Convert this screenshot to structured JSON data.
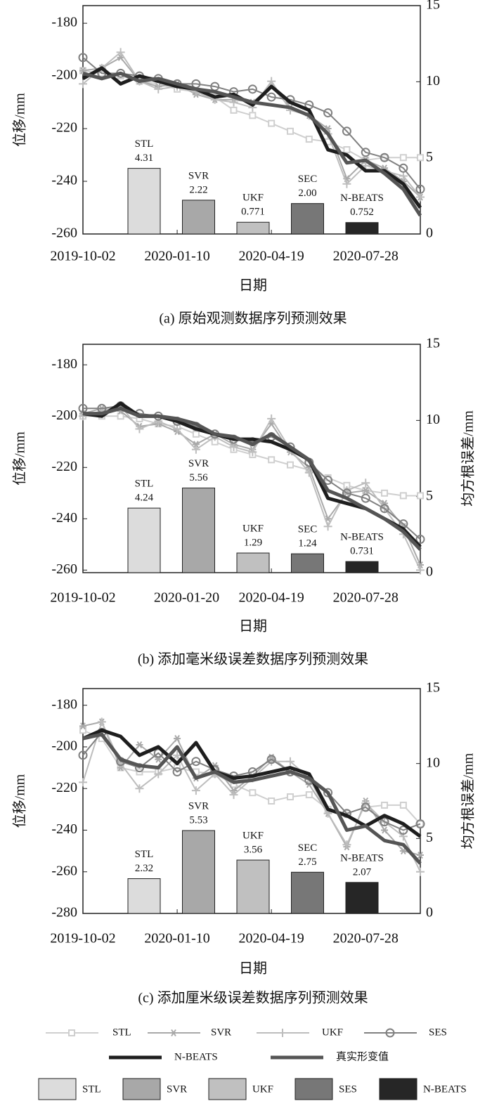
{
  "chart_data": [
    {
      "type": "line",
      "ylabel": "位移/mm",
      "xlabel": "日期",
      "caption": "(a) 原始观测数据序列预测效果",
      "x": [
        "2019-10-02",
        "2019-10-22",
        "2019-11-11",
        "2019-12-01",
        "2019-12-21",
        "2020-01-10",
        "2020-01-30",
        "2020-02-19",
        "2020-03-10",
        "2020-03-30",
        "2020-04-19",
        "2020-05-09",
        "2020-05-29",
        "2020-06-18",
        "2020-07-08",
        "2020-07-28",
        "2020-08-17",
        "2020-09-06",
        "2020-09-24"
      ],
      "xlim": [
        "2019-10-02",
        "2020-09-24"
      ],
      "xticks": [
        "2019-10-02",
        "2020-01-10",
        "2020-04-19",
        "2020-07-28"
      ],
      "ylim": [
        -260,
        -173.3
      ],
      "yticks": [
        -260,
        -240,
        -220,
        -200,
        -180
      ],
      "y2lim": [
        0,
        15
      ],
      "y2ticks": [
        0,
        5,
        10,
        15
      ],
      "series": [
        {
          "name": "STL",
          "color": "#cfcfcf",
          "marker": "square",
          "values": [
            -198,
            -199,
            -200,
            -202,
            -203,
            -205,
            -206,
            -208,
            -213,
            -215,
            -218,
            -221,
            -224,
            -225,
            -228,
            -232,
            -231,
            -231,
            -231
          ]
        },
        {
          "name": "SVR",
          "color": "#a9a9a9",
          "marker": "star",
          "values": [
            -198,
            -197,
            -193,
            -202,
            -204,
            -203,
            -207,
            -209,
            -209,
            -210,
            -204,
            -212,
            -215,
            -220,
            -239,
            -232,
            -235,
            -240,
            -246
          ]
        },
        {
          "name": "UKF",
          "color": "#bdbdbd",
          "marker": "plus",
          "values": [
            -203,
            -197,
            -191,
            -202,
            -205,
            -204,
            -206,
            -209,
            -210,
            -212,
            -202,
            -213,
            -215,
            -222,
            -241,
            -234,
            -236,
            -238,
            -246
          ]
        },
        {
          "name": "SES",
          "color": "#808080",
          "marker": "circle",
          "values": [
            -193,
            -199,
            -199,
            -200,
            -201,
            -203,
            -203,
            -204,
            -206,
            -205,
            -208,
            -209,
            -211,
            -214,
            -221,
            -229,
            -231,
            -235,
            -243
          ]
        },
        {
          "name": "N-BEATS",
          "color": "#1e1e1e",
          "values": [
            -201,
            -197,
            -203,
            -200,
            -202,
            -204,
            -205,
            -208,
            -207,
            -211,
            -204,
            -210,
            -213,
            -228,
            -230,
            -236,
            -236,
            -241,
            -250
          ]
        },
        {
          "name": "真实形变值",
          "color": "#555555",
          "values": [
            -199,
            -201,
            -199,
            -202,
            -201,
            -203,
            -205,
            -206,
            -208,
            -210,
            -211,
            -212,
            -215,
            -222,
            -233,
            -232,
            -237,
            -243,
            -253
          ]
        }
      ],
      "bars": {
        "axis": "y2",
        "categories": [
          "STL",
          "SVR",
          "UKF",
          "SEC",
          "N-BEATS"
        ],
        "values": [
          4.31,
          2.22,
          0.771,
          2,
          0.752
        ],
        "value_labels": [
          "4.31",
          "2.22",
          "0.771",
          "2.00",
          "0.752"
        ],
        "colors": [
          "#dcdcdc",
          "#a8a8a8",
          "#c0c0c0",
          "#777777",
          "#262626"
        ]
      }
    },
    {
      "type": "line",
      "ylabel": "位移/mm",
      "y2label": "均方根误差/mm",
      "xlabel": "日期",
      "caption": "(b) 添加毫米级误差数据序列预测效果",
      "x": [
        "2019-10-02",
        "2019-10-22",
        "2019-11-11",
        "2019-12-01",
        "2019-12-21",
        "2020-01-10",
        "2020-01-30",
        "2020-02-19",
        "2020-03-10",
        "2020-03-30",
        "2020-04-19",
        "2020-05-09",
        "2020-05-29",
        "2020-06-18",
        "2020-07-08",
        "2020-07-28",
        "2020-08-17",
        "2020-09-06",
        "2020-09-24"
      ],
      "xlim": [
        "2019-10-02",
        "2020-09-24"
      ],
      "xticks": [
        "2019-10-02",
        "2020-01-20",
        "2020-04-19",
        "2020-07-28"
      ],
      "ylim": [
        -261,
        -172
      ],
      "yticks": [
        -260,
        -240,
        -220,
        -200,
        -180
      ],
      "y2lim": [
        0,
        15
      ],
      "y2ticks": [
        0,
        5,
        10,
        15
      ],
      "series": [
        {
          "name": "STL",
          "color": "#cfcfcf",
          "marker": "square",
          "values": [
            -200,
            -200,
            -200,
            -201,
            -203,
            -204,
            -207,
            -210,
            -213,
            -215,
            -217,
            -219,
            -221,
            -224,
            -227,
            -229,
            -230,
            -231,
            -231
          ]
        },
        {
          "name": "SVR",
          "color": "#a9a9a9",
          "marker": "star",
          "values": [
            -199,
            -197,
            -198,
            -204,
            -203,
            -206,
            -211,
            -207,
            -211,
            -213,
            -203,
            -214,
            -220,
            -240,
            -230,
            -229,
            -234,
            -243,
            -258
          ]
        },
        {
          "name": "UKF",
          "color": "#bdbdbd",
          "marker": "plus",
          "values": [
            -200,
            -198,
            -196,
            -205,
            -202,
            -205,
            -213,
            -208,
            -212,
            -214,
            -201,
            -213,
            -222,
            -243,
            -229,
            -226,
            -236,
            -246,
            -260
          ]
        },
        {
          "name": "SES",
          "color": "#808080",
          "marker": "circle",
          "values": [
            -197,
            -197,
            -196,
            -199,
            -200,
            -202,
            -204,
            -207,
            -209,
            -210,
            -208,
            -212,
            -218,
            -225,
            -230,
            -232,
            -236,
            -242,
            -248
          ]
        },
        {
          "name": "N-BEATS",
          "color": "#1e1e1e",
          "values": [
            -199,
            -200,
            -195,
            -200,
            -200,
            -202,
            -205,
            -207,
            -209,
            -209,
            -210,
            -213,
            -217,
            -232,
            -234,
            -236,
            -240,
            -244,
            -251
          ]
        },
        {
          "name": "真实形变值",
          "color": "#555555",
          "values": [
            -199,
            -199,
            -197,
            -200,
            -200,
            -201,
            -203,
            -207,
            -208,
            -211,
            -207,
            -212,
            -217,
            -229,
            -232,
            -236,
            -240,
            -245,
            -252
          ]
        }
      ],
      "bars": {
        "axis": "y2",
        "categories": [
          "STL",
          "SVR",
          "UKF",
          "SEC",
          "N-BEATS"
        ],
        "values": [
          4.24,
          5.56,
          1.29,
          1.24,
          0.731
        ],
        "value_labels": [
          "4.24",
          "5.56",
          "1.29",
          "1.24",
          "0.731"
        ],
        "colors": [
          "#dcdcdc",
          "#a8a8a8",
          "#c0c0c0",
          "#777777",
          "#262626"
        ]
      }
    },
    {
      "type": "line",
      "ylabel": "位移/mm",
      "y2label": "均方根误差/mm",
      "xlabel": "日期",
      "caption": "(c) 添加厘米级误差数据序列预测效果",
      "x": [
        "2019-10-02",
        "2019-10-22",
        "2019-11-11",
        "2019-12-01",
        "2019-12-21",
        "2020-01-10",
        "2020-01-30",
        "2020-02-19",
        "2020-03-10",
        "2020-03-30",
        "2020-04-19",
        "2020-05-09",
        "2020-05-29",
        "2020-06-18",
        "2020-07-08",
        "2020-07-28",
        "2020-08-17",
        "2020-09-06",
        "2020-09-24"
      ],
      "xlim": [
        "2019-10-02",
        "2020-09-24"
      ],
      "xticks": [
        "2019-10-02",
        "2020-01-10",
        "2020-04-19",
        "2020-07-28"
      ],
      "ylim": [
        -280,
        -172
      ],
      "yticks": [
        -280,
        -260,
        -240,
        -220,
        -200,
        -180
      ],
      "y2lim": [
        0,
        15
      ],
      "y2ticks": [
        0,
        5,
        10,
        15
      ],
      "series": [
        {
          "name": "STL",
          "color": "#cfcfcf",
          "marker": "square",
          "values": [
            -192,
            -196,
            -210,
            -212,
            -212,
            -210,
            -212,
            -213,
            -218,
            -222,
            -226,
            -224,
            -223,
            -230,
            -232,
            -229,
            -228,
            -228,
            -237
          ]
        },
        {
          "name": "SVR",
          "color": "#a9a9a9",
          "marker": "star",
          "values": [
            -190,
            -188,
            -210,
            -199,
            -206,
            -196,
            -215,
            -209,
            -221,
            -214,
            -205,
            -212,
            -218,
            -232,
            -248,
            -226,
            -240,
            -250,
            -252
          ]
        },
        {
          "name": "UKF",
          "color": "#bdbdbd",
          "marker": "plus",
          "values": [
            -217,
            -188,
            -208,
            -220,
            -213,
            -204,
            -221,
            -213,
            -223,
            -215,
            -207,
            -207,
            -215,
            -232,
            -247,
            -227,
            -236,
            -243,
            -260
          ]
        },
        {
          "name": "SES",
          "color": "#808080",
          "marker": "circle",
          "values": [
            -204,
            -193,
            -207,
            -210,
            -203,
            -212,
            -207,
            -211,
            -214,
            -212,
            -206,
            -212,
            -216,
            -222,
            -232,
            -229,
            -236,
            -240,
            -237
          ]
        },
        {
          "name": "N-BEATS",
          "color": "#1e1e1e",
          "values": [
            -196,
            -192,
            -195,
            -204,
            -200,
            -208,
            -198,
            -212,
            -215,
            -214,
            -212,
            -210,
            -213,
            -230,
            -233,
            -238,
            -233,
            -237,
            -243
          ]
        },
        {
          "name": "真实形变值",
          "color": "#555555",
          "values": [
            -196,
            -194,
            -206,
            -209,
            -210,
            -200,
            -215,
            -212,
            -217,
            -216,
            -214,
            -212,
            -215,
            -222,
            -240,
            -238,
            -245,
            -247,
            -256
          ]
        }
      ],
      "bars": {
        "axis": "y2",
        "categories": [
          "STL",
          "SVR",
          "UKF",
          "SEC",
          "N-BEATS"
        ],
        "values": [
          2.32,
          5.53,
          3.56,
          2.75,
          2.07
        ],
        "value_labels": [
          "2.32",
          "5.53",
          "3.56",
          "2.75",
          "2.07"
        ],
        "colors": [
          "#dcdcdc",
          "#a8a8a8",
          "#c0c0c0",
          "#777777",
          "#262626"
        ]
      }
    }
  ],
  "bar_legend": [
    "STL",
    "SVR",
    "UKF",
    "SES",
    "N-BEATS"
  ]
}
